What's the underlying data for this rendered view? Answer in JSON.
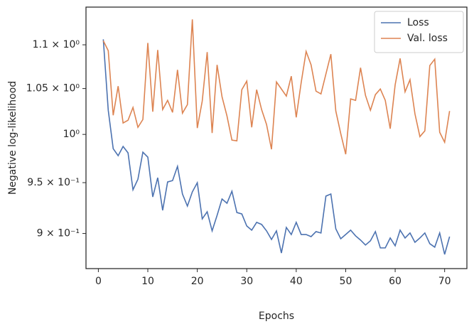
{
  "chart_data": {
    "type": "line",
    "x_label": "Epochs",
    "y_label": "Negative log-likelihood",
    "x": [
      1,
      2,
      3,
      4,
      5,
      6,
      7,
      8,
      9,
      10,
      11,
      12,
      13,
      14,
      15,
      16,
      17,
      18,
      19,
      20,
      21,
      22,
      23,
      24,
      25,
      26,
      27,
      28,
      29,
      30,
      31,
      32,
      33,
      34,
      35,
      36,
      37,
      38,
      39,
      40,
      41,
      42,
      43,
      44,
      45,
      46,
      47,
      48,
      49,
      50,
      51,
      52,
      53,
      54,
      55,
      56,
      57,
      58,
      59,
      60,
      61,
      62,
      63,
      64,
      65,
      66,
      67,
      68,
      69,
      70,
      71
    ],
    "series": [
      {
        "name": "Loss",
        "color": "#4c72b0",
        "values": [
          1.1064,
          1.026,
          0.985,
          0.9776,
          0.9873,
          0.9806,
          0.9428,
          0.9535,
          0.9813,
          0.9761,
          0.9357,
          0.955,
          0.9224,
          0.9507,
          0.9521,
          0.9666,
          0.9386,
          0.9266,
          0.9407,
          0.9499,
          0.9141,
          0.921,
          0.9025,
          0.9175,
          0.9336,
          0.9294,
          0.9414,
          0.9203,
          0.9189,
          0.9072,
          0.9032,
          0.9107,
          0.9087,
          0.9025,
          0.8943,
          0.9025,
          0.8815,
          0.9058,
          0.899,
          0.9107,
          0.899,
          0.899,
          0.897,
          0.9018,
          0.9005,
          0.9365,
          0.9386,
          0.9045,
          0.895,
          0.899,
          0.9032,
          0.8977,
          0.8937,
          0.889,
          0.893,
          0.9018,
          0.8863,
          0.8863,
          0.8957,
          0.8883,
          0.9032,
          0.8957,
          0.9005,
          0.8916,
          0.8957,
          0.9005,
          0.8903,
          0.887,
          0.9005,
          0.8802,
          0.897
        ]
      },
      {
        "name": "Val. loss",
        "color": "#dd8452",
        "values": [
          1.1047,
          1.0931,
          1.0206,
          1.0527,
          1.0122,
          1.0152,
          1.0291,
          1.0076,
          1.016,
          1.1022,
          1.0245,
          1.094,
          1.0268,
          1.0369,
          1.0237,
          1.0711,
          1.0229,
          1.0322,
          1.1301,
          1.0068,
          1.0361,
          1.0915,
          1.0015,
          1.0768,
          1.0408,
          1.0198,
          0.994,
          0.9932,
          1.0487,
          1.0583,
          1.0076,
          1.0487,
          1.0268,
          1.0106,
          0.9843,
          1.0574,
          1.0495,
          1.0416,
          1.0639,
          1.0183,
          1.0566,
          1.0923,
          1.0768,
          1.0471,
          1.044,
          1.0663,
          1.0891,
          1.0252,
          1.0008,
          0.9791,
          1.0385,
          1.0369,
          1.0735,
          1.0424,
          1.026,
          1.0432,
          1.0495,
          1.0369,
          1.0061,
          1.0543,
          1.0842,
          1.0463,
          1.0599,
          1.0221,
          0.9977,
          1.0038,
          1.076,
          1.0833,
          1.0023,
          0.9917,
          1.0252
        ]
      }
    ],
    "xlim": [
      -2.5,
      74.5
    ],
    "xticks": [
      0,
      10,
      20,
      30,
      40,
      50,
      60,
      70
    ],
    "ylim": [
      0.867,
      1.145
    ],
    "y_log": true,
    "yticks": [
      {
        "value": 0.9,
        "label": "9 × 10⁻¹"
      },
      {
        "value": 0.95,
        "label": "9.5 × 10⁻¹"
      },
      {
        "value": 1,
        "label": "10⁰"
      },
      {
        "value": 1.05,
        "label": "1.05 × 10⁰"
      },
      {
        "value": 1.1,
        "label": "1.1 × 10⁰"
      }
    ],
    "grid": false,
    "legend": "upper right"
  }
}
